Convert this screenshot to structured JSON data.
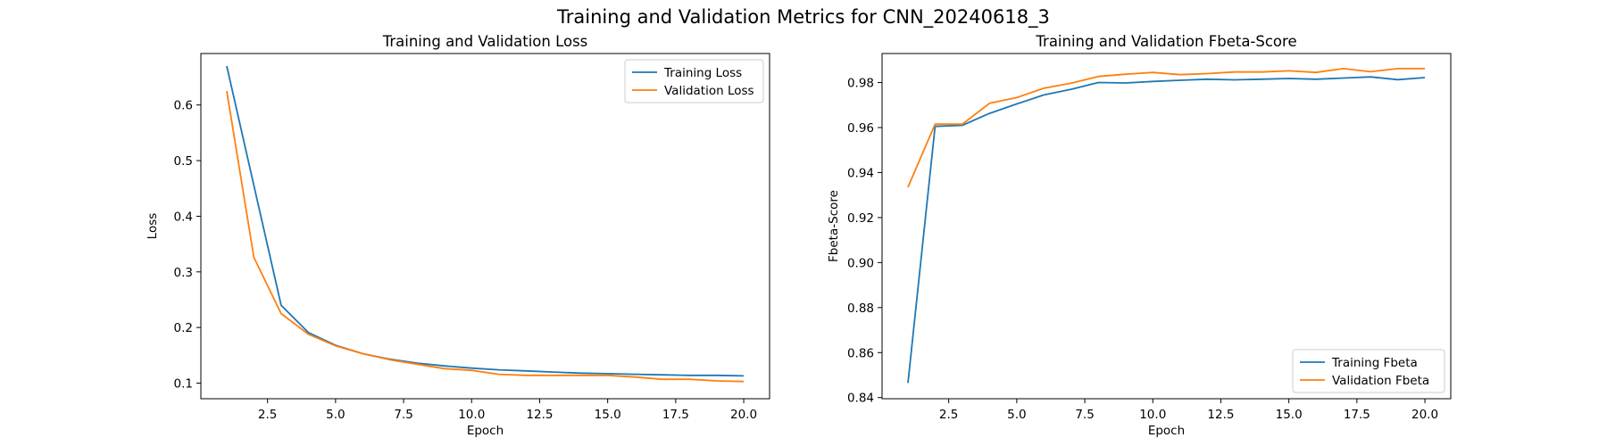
{
  "figure": {
    "suptitle": "Training and Validation Metrics for CNN_20240618_3"
  },
  "colors": {
    "training": "#1f77b4",
    "validation": "#ff7f0e"
  },
  "chart_data": [
    {
      "type": "line",
      "title": "Training and Validation Loss",
      "xlabel": "Epoch",
      "ylabel": "Loss",
      "xlim": [
        0.05,
        20.95
      ],
      "ylim": [
        0.072,
        0.6925
      ],
      "xticks": [
        2.5,
        5.0,
        7.5,
        10.0,
        12.5,
        15.0,
        17.5,
        20.0
      ],
      "yticks": [
        0.1,
        0.2,
        0.3,
        0.4,
        0.5,
        0.6
      ],
      "ytick_decimals": 1,
      "legend": "upper right",
      "grid": false,
      "x": [
        1,
        2,
        3,
        4,
        5,
        6,
        7,
        8,
        9,
        10,
        11,
        12,
        13,
        14,
        15,
        16,
        17,
        18,
        19,
        20
      ],
      "series": [
        {
          "name": "Training Loss",
          "color": "#1f77b4",
          "values": [
            0.67,
            0.455,
            0.24,
            0.191,
            0.168,
            0.153,
            0.143,
            0.136,
            0.131,
            0.127,
            0.124,
            0.122,
            0.12,
            0.118,
            0.117,
            0.116,
            0.115,
            0.114,
            0.114,
            0.113
          ]
        },
        {
          "name": "Validation Loss",
          "color": "#ff7f0e",
          "values": [
            0.625,
            0.326,
            0.225,
            0.188,
            0.167,
            0.153,
            0.142,
            0.134,
            0.126,
            0.123,
            0.116,
            0.114,
            0.114,
            0.114,
            0.114,
            0.111,
            0.107,
            0.107,
            0.104,
            0.103
          ]
        }
      ]
    },
    {
      "type": "line",
      "title": "Training and Validation Fbeta-Score",
      "xlabel": "Epoch",
      "ylabel": "Fbeta-Score",
      "xlim": [
        0.05,
        20.95
      ],
      "ylim": [
        0.8395,
        0.9929
      ],
      "xticks": [
        2.5,
        5.0,
        7.5,
        10.0,
        12.5,
        15.0,
        17.5,
        20.0
      ],
      "yticks": [
        0.84,
        0.86,
        0.88,
        0.9,
        0.92,
        0.94,
        0.96,
        0.98
      ],
      "ytick_decimals": 2,
      "legend": "lower right",
      "grid": false,
      "x": [
        1,
        2,
        3,
        4,
        5,
        6,
        7,
        8,
        9,
        10,
        11,
        12,
        13,
        14,
        15,
        16,
        17,
        18,
        19,
        20
      ],
      "series": [
        {
          "name": "Training Fbeta",
          "color": "#1f77b4",
          "values": [
            0.8465,
            0.9605,
            0.961,
            0.9663,
            0.9705,
            0.9745,
            0.977,
            0.98,
            0.9798,
            0.9805,
            0.981,
            0.9815,
            0.9812,
            0.9815,
            0.9818,
            0.9815,
            0.982,
            0.9825,
            0.9813,
            0.9822
          ]
        },
        {
          "name": "Validation Fbeta",
          "color": "#ff7f0e",
          "values": [
            0.9335,
            0.9615,
            0.9615,
            0.9708,
            0.9733,
            0.9775,
            0.9797,
            0.9827,
            0.9837,
            0.9845,
            0.9835,
            0.984,
            0.9847,
            0.9847,
            0.9852,
            0.9845,
            0.9862,
            0.9848,
            0.9862,
            0.9862
          ]
        }
      ]
    }
  ]
}
